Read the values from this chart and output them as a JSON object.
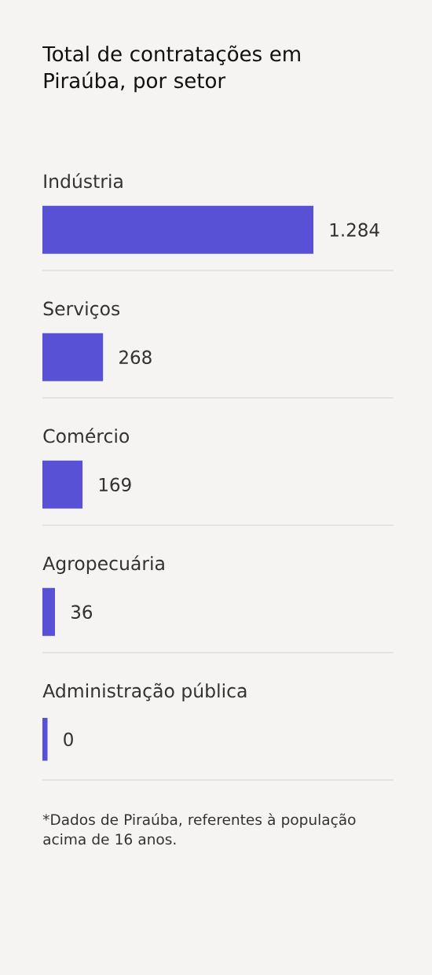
{
  "chart_data": {
    "type": "bar",
    "orientation": "horizontal",
    "title": "Total de contratações em Piraúba, por setor",
    "categories": [
      "Indústria",
      "Serviços",
      "Comércio",
      "Agropecuária",
      "Administração pública"
    ],
    "values": [
      1284,
      268,
      169,
      36,
      0
    ],
    "value_labels": [
      "1.284",
      "268",
      "169",
      "36",
      "0"
    ],
    "color": "#5851d6",
    "annotations": [
      "*Dados de Piraúba, referentes à população acima de 16 anos."
    ]
  }
}
